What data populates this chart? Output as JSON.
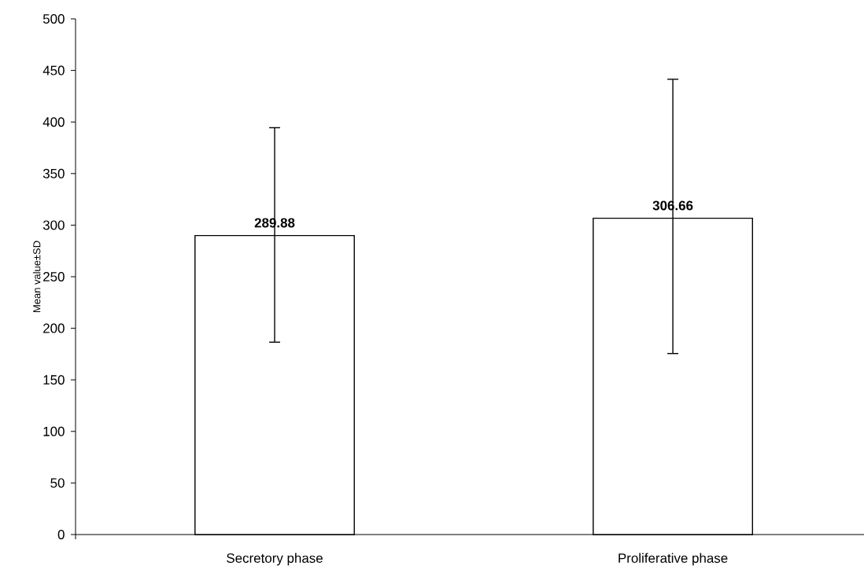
{
  "chart_data": {
    "type": "bar",
    "ylabel": "Mean value±SD",
    "categories": [
      "Secretory phase",
      "Proliferative phase"
    ],
    "values": [
      289.88,
      306.66
    ],
    "errors": [
      [
        186,
        395
      ],
      [
        175,
        442
      ]
    ],
    "color": "#ffffff",
    "ylim": [
      0,
      500
    ],
    "yticks": [
      0,
      50,
      100,
      150,
      200,
      250,
      300,
      350,
      400,
      450,
      500
    ],
    "data_labels": true
  }
}
